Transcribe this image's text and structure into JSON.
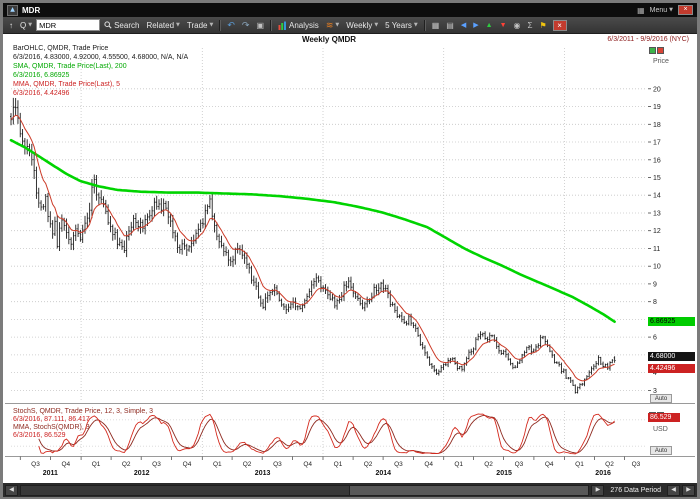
{
  "titlebar": {
    "title": "MDR",
    "menu_label": "Menu"
  },
  "toolbar": {
    "q_label": "Q",
    "symbol": "MDR",
    "search_label": "Search",
    "related_label": "Related",
    "trade_label": "Trade",
    "analysis_label": "Analysis",
    "weekly_label": "Weekly",
    "range_label": "5 Years"
  },
  "header": {
    "chart_title": "Weekly QMDR",
    "date_range": "6/3/2011 - 9/9/2016 (NYC)",
    "price_axis_label": "Price",
    "currency_label": "USD",
    "auto_label": "Auto"
  },
  "badges": {
    "sma": "6.86925",
    "close": "4.68000",
    "mma": "4.42496",
    "stoch": "86.529"
  },
  "statusbar": {
    "data_period_label": "276 Data Period"
  },
  "chart_data": [
    {
      "type": "ohlc",
      "symbol": "QMDR",
      "period": "Weekly",
      "title": "Weekly QMDR",
      "x_weeks": [
        0,
        275
      ],
      "last_data_week": 261,
      "x_start_label": "6/3/2011",
      "x_end_label": "9/9/2016",
      "ylim": [
        2.4,
        22.3
      ],
      "price_ticks": [
        20,
        19,
        18,
        17,
        16,
        15,
        14,
        13,
        12,
        11,
        10,
        9,
        8,
        7,
        6,
        5,
        4,
        3
      ],
      "bar_color": "#1f1f1f",
      "sma_color": "#00d400",
      "mma_color": "#cc3b28",
      "last_bar": {
        "date": "6/3/2016",
        "open": 4.83,
        "high": 4.92,
        "low": 4.555,
        "close": 4.68
      },
      "sma_last": 6.86925,
      "mma_last": 4.42496,
      "legend": [
        {
          "text": "BarOHLC, QMDR, Trade Price",
          "color": "#1a1a1a"
        },
        {
          "text": "6/3/2016, 4.83000, 4.92000, 4.55500, 4.68000, N/A, N/A",
          "color": "#1a1a1a"
        },
        {
          "text": "SMA, QMDR, Trade Price(Last), 200",
          "color": "#00a800"
        },
        {
          "text": "6/3/2016, 6.86925",
          "color": "#00a800"
        },
        {
          "text": "MMA, QMDR, Trade Price(Last), 5",
          "color": "#cc2222"
        },
        {
          "text": "6/3/2016, 4.42496",
          "color": "#cc2222"
        }
      ],
      "close_anchors": [
        [
          0,
          18.4
        ],
        [
          1,
          19.0
        ],
        [
          3,
          18.2
        ],
        [
          5,
          17.3
        ],
        [
          7,
          16.6
        ],
        [
          9,
          16.1
        ],
        [
          10,
          15.2
        ],
        [
          11,
          13.9
        ],
        [
          13,
          13.1
        ],
        [
          15,
          13.9
        ],
        [
          16,
          12.9
        ],
        [
          18,
          11.6
        ],
        [
          19,
          12.3
        ],
        [
          20,
          11.2
        ],
        [
          22,
          12.6
        ],
        [
          24,
          12.1
        ],
        [
          26,
          11.4
        ],
        [
          28,
          11.9
        ],
        [
          30,
          11.6
        ],
        [
          32,
          12.5
        ],
        [
          34,
          13.4
        ],
        [
          35,
          14.4
        ],
        [
          36,
          15.2
        ],
        [
          37,
          14.3
        ],
        [
          39,
          13.6
        ],
        [
          41,
          12.9
        ],
        [
          43,
          12.3
        ],
        [
          45,
          11.8
        ],
        [
          47,
          11.2
        ],
        [
          49,
          11.0
        ],
        [
          51,
          11.9
        ],
        [
          53,
          12.5
        ],
        [
          55,
          12.0
        ],
        [
          57,
          12.4
        ],
        [
          59,
          12.8
        ],
        [
          61,
          13.2
        ],
        [
          63,
          13.6
        ],
        [
          65,
          13.1
        ],
        [
          66,
          13.8
        ],
        [
          68,
          12.9
        ],
        [
          70,
          11.9
        ],
        [
          72,
          11.0
        ],
        [
          74,
          11.3
        ],
        [
          76,
          10.8
        ],
        [
          78,
          11.2
        ],
        [
          80,
          11.7
        ],
        [
          82,
          12.3
        ],
        [
          84,
          12.9
        ],
        [
          86,
          13.5
        ],
        [
          87,
          12.7
        ],
        [
          89,
          11.9
        ],
        [
          91,
          11.2
        ],
        [
          93,
          10.7
        ],
        [
          95,
          10.3
        ],
        [
          97,
          10.9
        ],
        [
          99,
          11.2
        ],
        [
          101,
          10.5
        ],
        [
          103,
          9.7
        ],
        [
          105,
          9.1
        ],
        [
          107,
          8.3
        ],
        [
          108,
          7.7
        ],
        [
          110,
          8.0
        ],
        [
          112,
          8.4
        ],
        [
          114,
          8.7
        ],
        [
          116,
          8.2
        ],
        [
          118,
          7.8
        ],
        [
          120,
          7.5
        ],
        [
          122,
          7.9
        ],
        [
          124,
          7.6
        ],
        [
          126,
          8.0
        ],
        [
          128,
          8.4
        ],
        [
          130,
          8.9
        ],
        [
          132,
          9.2
        ],
        [
          134,
          9.0
        ],
        [
          136,
          8.8
        ],
        [
          138,
          8.3
        ],
        [
          140,
          7.9
        ],
        [
          142,
          8.2
        ],
        [
          144,
          8.7
        ],
        [
          146,
          9.0
        ],
        [
          148,
          8.6
        ],
        [
          150,
          8.0
        ],
        [
          152,
          7.6
        ],
        [
          154,
          7.9
        ],
        [
          156,
          8.4
        ],
        [
          158,
          8.8
        ],
        [
          160,
          9.1
        ],
        [
          162,
          8.6
        ],
        [
          164,
          8.0
        ],
        [
          166,
          7.5
        ],
        [
          168,
          7.1
        ],
        [
          170,
          6.7
        ],
        [
          172,
          7.0
        ],
        [
          174,
          6.6
        ],
        [
          176,
          6.0
        ],
        [
          178,
          5.3
        ],
        [
          180,
          4.7
        ],
        [
          182,
          4.3
        ],
        [
          184,
          3.9
        ],
        [
          186,
          4.2
        ],
        [
          188,
          4.6
        ],
        [
          190,
          4.9
        ],
        [
          192,
          4.6
        ],
        [
          194,
          4.2
        ],
        [
          196,
          4.5
        ],
        [
          198,
          5.0
        ],
        [
          200,
          5.5
        ],
        [
          202,
          5.9
        ],
        [
          204,
          6.2
        ],
        [
          206,
          5.8
        ],
        [
          208,
          6.0
        ],
        [
          210,
          5.6
        ],
        [
          212,
          5.2
        ],
        [
          214,
          4.9
        ],
        [
          216,
          4.5
        ],
        [
          218,
          4.3
        ],
        [
          220,
          4.6
        ],
        [
          222,
          5.1
        ],
        [
          224,
          5.5
        ],
        [
          226,
          5.2
        ],
        [
          228,
          5.7
        ],
        [
          230,
          6.0
        ],
        [
          232,
          5.5
        ],
        [
          234,
          4.9
        ],
        [
          236,
          4.5
        ],
        [
          238,
          4.2
        ],
        [
          240,
          3.8
        ],
        [
          242,
          3.4
        ],
        [
          244,
          3.0
        ],
        [
          246,
          3.2
        ],
        [
          248,
          3.7
        ],
        [
          250,
          4.1
        ],
        [
          252,
          4.5
        ],
        [
          254,
          4.8
        ],
        [
          256,
          4.5
        ],
        [
          258,
          4.3
        ],
        [
          260,
          4.6
        ],
        [
          261,
          4.68
        ]
      ],
      "sma_anchors": [
        [
          0,
          17.1
        ],
        [
          6,
          16.7
        ],
        [
          12,
          16.2
        ],
        [
          18,
          15.7
        ],
        [
          24,
          15.2
        ],
        [
          30,
          14.8
        ],
        [
          38,
          14.5
        ],
        [
          46,
          14.3
        ],
        [
          56,
          14.2
        ],
        [
          68,
          14.15
        ],
        [
          80,
          14.15
        ],
        [
          92,
          14.1
        ],
        [
          104,
          14.05
        ],
        [
          116,
          13.95
        ],
        [
          128,
          13.8
        ],
        [
          140,
          13.6
        ],
        [
          150,
          13.35
        ],
        [
          160,
          13.05
        ],
        [
          170,
          12.65
        ],
        [
          180,
          12.2
        ],
        [
          188,
          11.6
        ],
        [
          196,
          11.0
        ],
        [
          204,
          10.5
        ],
        [
          212,
          10.05
        ],
        [
          220,
          9.55
        ],
        [
          228,
          9.1
        ],
        [
          236,
          8.65
        ],
        [
          243,
          8.25
        ],
        [
          250,
          7.75
        ],
        [
          256,
          7.3
        ],
        [
          261,
          6.87
        ]
      ],
      "xaxis": {
        "quarter_boundaries": [
          4,
          17.1,
          30.3,
          43.3,
          56.3,
          69.4,
          82.7,
          95.6,
          108.6,
          121.7,
          134.9,
          147.9,
          160.9,
          174,
          187.1,
          200,
          213,
          226.1,
          239.3,
          252.3,
          265.3
        ],
        "quarter_ticks": [
          {
            "label": "Q3",
            "week": 10.6
          },
          {
            "label": "Q4",
            "week": 23.7
          },
          {
            "label": "Q1",
            "week": 36.8
          },
          {
            "label": "Q2",
            "week": 49.8
          },
          {
            "label": "Q3",
            "week": 62.9
          },
          {
            "label": "Q4",
            "week": 76.1
          },
          {
            "label": "Q1",
            "week": 89.2
          },
          {
            "label": "Q2",
            "week": 102.1
          },
          {
            "label": "Q3",
            "week": 115.2
          },
          {
            "label": "Q4",
            "week": 128.3
          },
          {
            "label": "Q1",
            "week": 141.4
          },
          {
            "label": "Q2",
            "week": 154.4
          },
          {
            "label": "Q3",
            "week": 167.5
          },
          {
            "label": "Q4",
            "week": 180.6
          },
          {
            "label": "Q1",
            "week": 193.6
          },
          {
            "label": "Q2",
            "week": 206.5
          },
          {
            "label": "Q3",
            "week": 219.6
          },
          {
            "label": "Q4",
            "week": 232.7
          },
          {
            "label": "Q1",
            "week": 245.8
          },
          {
            "label": "Q2",
            "week": 258.8
          },
          {
            "label": "Q3",
            "week": 270.2
          }
        ],
        "year_labels": [
          {
            "label": "2011",
            "week": 17
          },
          {
            "label": "2012",
            "week": 56.5
          },
          {
            "label": "2013",
            "week": 108.8
          },
          {
            "label": "2014",
            "week": 161
          },
          {
            "label": "2015",
            "week": 213.2
          },
          {
            "label": "2016",
            "week": 256
          }
        ],
        "year_boundaries": [
          30.3,
          82.7,
          134.9,
          187.1,
          239.3
        ]
      }
    },
    {
      "type": "line",
      "name": "StochS",
      "params": [
        12,
        3,
        "Simple",
        3
      ],
      "ylim": [
        0,
        100
      ],
      "k_color": "#d42a1e",
      "d_color": "#8e2a20",
      "last_values": {
        "stoch": 87.111,
        "signal": 86.417,
        "mma": 86.529
      },
      "legend": [
        {
          "text": "StochS, QMDR, Trade Price, 12, 3, Simple, 3",
          "color": "#8e2a20"
        },
        {
          "text": "6/3/2016, 87.111, 86.417",
          "color": "#cc2222"
        },
        {
          "text": "MMA, StochS(QMDR), 3",
          "color": "#8e2a20"
        },
        {
          "text": "6/3/2016, 86.529",
          "color": "#cc2222"
        }
      ]
    }
  ]
}
